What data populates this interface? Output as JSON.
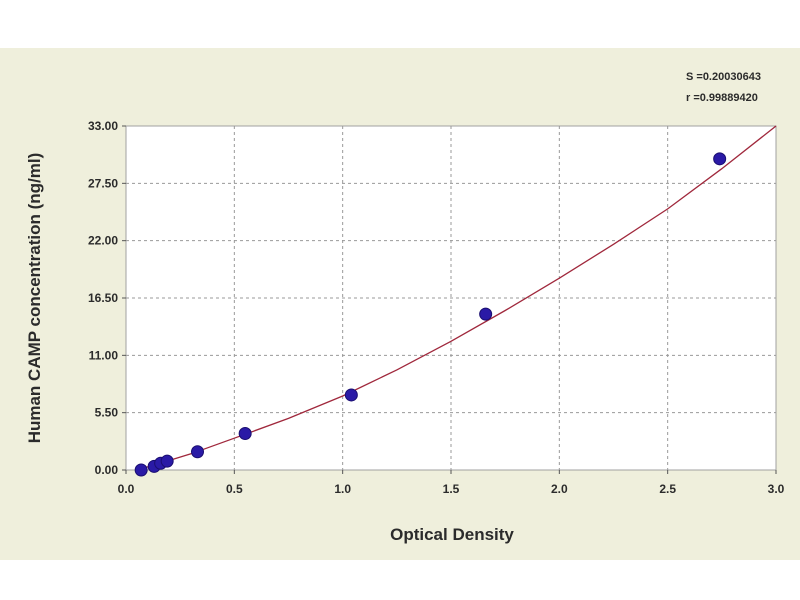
{
  "chart_data": {
    "type": "scatter",
    "title": "",
    "xlabel": "Optical Density",
    "ylabel": "Human CAMP concentration (ng/ml)",
    "xlim": [
      0.0,
      3.0
    ],
    "ylim": [
      0.0,
      33.0
    ],
    "x_ticks": [
      {
        "value": 0.0,
        "label": "0.0"
      },
      {
        "value": 0.5,
        "label": "0.5"
      },
      {
        "value": 1.0,
        "label": "1.0"
      },
      {
        "value": 1.5,
        "label": "1.5"
      },
      {
        "value": 2.0,
        "label": "2.0"
      },
      {
        "value": 2.5,
        "label": "2.5"
      },
      {
        "value": 3.0,
        "label": "3.0"
      }
    ],
    "y_ticks": [
      {
        "value": 0.0,
        "label": "0.00"
      },
      {
        "value": 5.5,
        "label": "5.50"
      },
      {
        "value": 11.0,
        "label": "11.00"
      },
      {
        "value": 16.5,
        "label": "16.50"
      },
      {
        "value": 22.0,
        "label": "22.00"
      },
      {
        "value": 27.5,
        "label": "27.50"
      },
      {
        "value": 33.0,
        "label": "33.00"
      }
    ],
    "grid": true,
    "points": {
      "x": [
        0.07,
        0.13,
        0.16,
        0.19,
        0.33,
        0.55,
        1.04,
        1.66,
        2.74
      ],
      "y": [
        0.0,
        0.35,
        0.65,
        0.85,
        1.75,
        3.5,
        7.2,
        14.95,
        29.85
      ],
      "color": "#2a1aa6"
    },
    "fit_curve": {
      "x": [
        0.05,
        0.15,
        0.3,
        0.5,
        0.75,
        1.0,
        1.25,
        1.5,
        1.75,
        2.0,
        2.25,
        2.5,
        2.75,
        3.0
      ],
      "y": [
        0.0,
        0.6,
        1.55,
        3.05,
        4.95,
        7.1,
        9.6,
        12.35,
        15.3,
        18.4,
        21.65,
        25.05,
        28.9,
        33.2
      ],
      "color": "#a0283c"
    },
    "stats": {
      "s_line": "S =0.20030643",
      "r_line": "r =0.99889420"
    }
  }
}
